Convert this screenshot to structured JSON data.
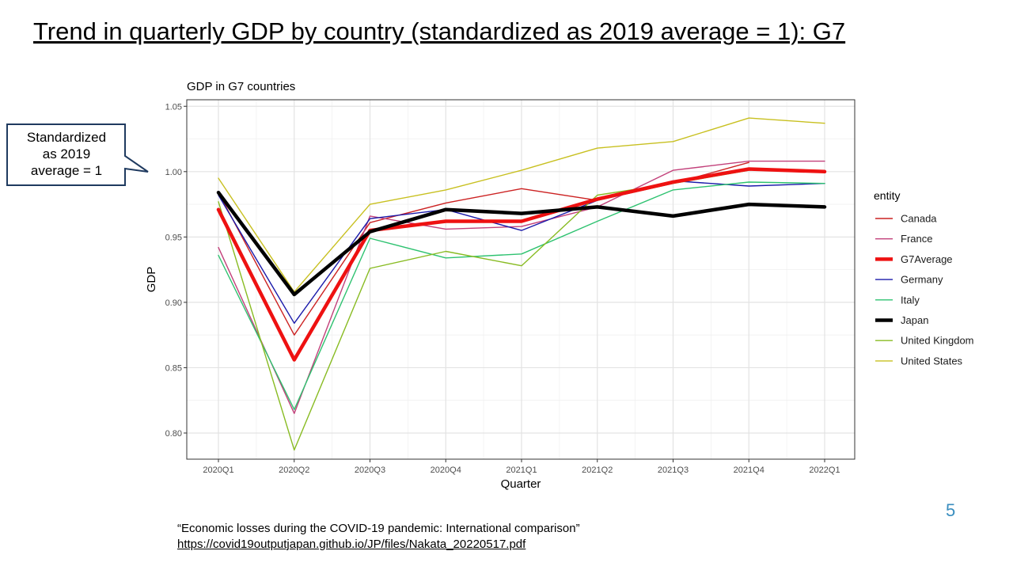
{
  "slide": {
    "title": "Trend in quarterly GDP by country (standardized as 2019 average = 1): G7",
    "page_number": "5",
    "callout_lines": [
      "Standardized",
      "as 2019",
      "average = 1"
    ],
    "source_quote": "“Economic losses during the COVID-19 pandemic: International  comparison”",
    "source_link": "https://covid19outputjapan.github.io/JP/files/Nakata_20220517.pdf"
  },
  "chart_data": {
    "type": "line",
    "title": "GDP in G7 countries",
    "xlabel": "Quarter",
    "ylabel": "GDP",
    "ylim": [
      0.78,
      1.055
    ],
    "yticks": [
      0.8,
      0.85,
      0.9,
      0.95,
      1.0,
      1.05
    ],
    "ytick_labels": [
      "0.80",
      "0.85",
      "0.90",
      "0.95",
      "1.00",
      "1.05"
    ],
    "categories": [
      "2020Q1",
      "2020Q2",
      "2020Q3",
      "2020Q4",
      "2021Q1",
      "2021Q2",
      "2021Q3",
      "2021Q4",
      "2022Q1"
    ],
    "grid": true,
    "legend_title": "entity",
    "legend_position": "right",
    "series": [
      {
        "name": "Canada",
        "color": "#cc2222",
        "width": "thin",
        "values": [
          0.984,
          0.875,
          0.961,
          0.976,
          0.987,
          0.978,
          0.991,
          1.007,
          null
        ]
      },
      {
        "name": "France",
        "color": "#c2407a",
        "width": "thin",
        "values": [
          0.942,
          0.815,
          0.966,
          0.956,
          0.958,
          0.973,
          1.001,
          1.008,
          1.008
        ]
      },
      {
        "name": "G7Average",
        "color": "#ee1111",
        "width": "thick",
        "values": [
          0.971,
          0.856,
          0.955,
          0.962,
          0.962,
          0.979,
          0.992,
          1.002,
          1.0
        ]
      },
      {
        "name": "Germany",
        "color": "#1a1aaa",
        "width": "thin",
        "values": [
          0.982,
          0.884,
          0.964,
          0.971,
          0.955,
          0.978,
          0.993,
          0.989,
          0.991
        ]
      },
      {
        "name": "Italy",
        "color": "#2ec270",
        "width": "thin",
        "values": [
          0.936,
          0.818,
          0.949,
          0.934,
          0.937,
          0.962,
          0.986,
          0.992,
          0.991
        ]
      },
      {
        "name": "Japan",
        "color": "#000000",
        "width": "thick",
        "values": [
          0.984,
          0.906,
          0.954,
          0.971,
          0.968,
          0.973,
          0.966,
          0.975,
          0.973
        ]
      },
      {
        "name": "United Kingdom",
        "color": "#88bb22",
        "width": "thin",
        "values": [
          0.977,
          0.787,
          0.926,
          0.939,
          0.928,
          0.982,
          0.991,
          1.001,
          null
        ]
      },
      {
        "name": "United States",
        "color": "#c8c020",
        "width": "thin",
        "values": [
          0.995,
          0.908,
          0.975,
          0.986,
          1.001,
          1.018,
          1.023,
          1.041,
          1.037
        ]
      }
    ]
  }
}
